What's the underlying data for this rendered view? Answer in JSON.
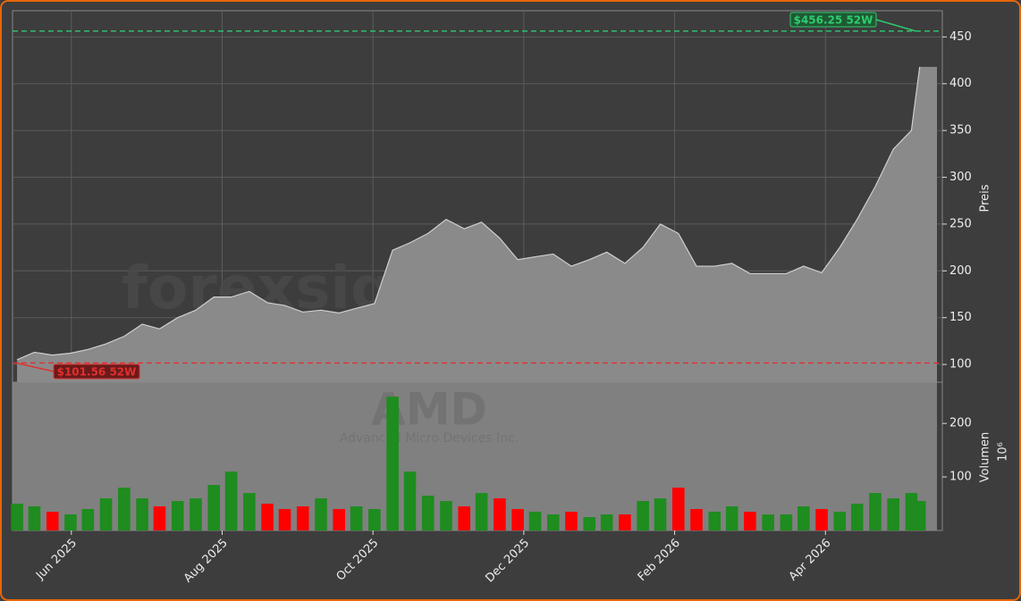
{
  "chart_data": [
    {
      "type": "area",
      "title": "forexsignale.trade",
      "ylabel": "Preis",
      "color": "#8a8a8a",
      "line_color": "#cfcfcf",
      "x": [
        4.28,
        4.51,
        4.75,
        4.99,
        5.22,
        5.46,
        5.7,
        5.94,
        6.17,
        6.41,
        6.65,
        6.89,
        7.12,
        7.36,
        7.6,
        7.83,
        8.07,
        8.31,
        8.55,
        8.78,
        9.02,
        9.26,
        9.49,
        9.73,
        9.97,
        10.21,
        10.44,
        10.68,
        10.92,
        11.15,
        11.39,
        11.63,
        11.87,
        12.1,
        12.34,
        12.58,
        12.81,
        13.05,
        13.29,
        13.53,
        13.76,
        14.0,
        14.24,
        14.48,
        14.71,
        14.95,
        15.19,
        15.42,
        15.66,
        15.9,
        16.14,
        16.25
      ],
      "values": [
        105,
        113,
        110,
        112,
        116,
        122,
        130,
        143,
        138,
        150,
        158,
        172,
        172,
        178,
        166,
        163,
        156,
        158,
        155,
        160,
        165,
        222,
        230,
        240,
        255,
        245,
        252,
        235,
        212,
        215,
        218,
        205,
        212,
        220,
        208,
        225,
        250,
        240,
        205,
        205,
        208,
        197,
        197,
        197,
        205,
        198,
        225,
        255,
        290,
        330,
        350,
        418
      ],
      "xlim": [
        4.22,
        16.55
      ],
      "ylim": [
        81,
        478
      ],
      "yticks": [
        100,
        150,
        200,
        250,
        300,
        350,
        400,
        450
      ],
      "grid": true,
      "annotations": [
        {
          "text": "$456.25 52W",
          "value": 456.25,
          "color": "#2ecc71"
        },
        {
          "text": "$101.56 52W",
          "value": 101.56,
          "color": "#e03030"
        }
      ]
    },
    {
      "type": "bar",
      "title": "AMD",
      "subtitle": "Advanced Micro Devices Inc.",
      "ylabel": "Volumen",
      "unit": "10⁶",
      "up_color": "#1e8c1e",
      "down_color": "#ff0000",
      "x": [
        4.28,
        4.51,
        4.75,
        4.99,
        5.22,
        5.46,
        5.7,
        5.94,
        6.17,
        6.41,
        6.65,
        6.89,
        7.12,
        7.36,
        7.6,
        7.83,
        8.07,
        8.31,
        8.55,
        8.78,
        9.02,
        9.26,
        9.49,
        9.73,
        9.97,
        10.21,
        10.44,
        10.68,
        10.92,
        11.15,
        11.39,
        11.63,
        11.87,
        12.1,
        12.34,
        12.58,
        12.81,
        13.05,
        13.29,
        13.53,
        13.76,
        14.0,
        14.24,
        14.48,
        14.71,
        14.95,
        15.19,
        15.42,
        15.66,
        15.9,
        16.14,
        16.25
      ],
      "values": [
        50,
        45,
        35,
        30,
        40,
        60,
        80,
        60,
        45,
        55,
        60,
        85,
        110,
        70,
        50,
        40,
        45,
        60,
        40,
        45,
        40,
        250,
        110,
        65,
        55,
        45,
        70,
        60,
        40,
        35,
        30,
        35,
        25,
        30,
        30,
        55,
        60,
        80,
        40,
        35,
        45,
        35,
        30,
        30,
        45,
        40,
        35,
        50,
        70,
        60,
        70,
        55
      ],
      "xlim": [
        4.22,
        16.55
      ],
      "ylim": [
        0,
        277
      ],
      "yticks": [
        100,
        200
      ],
      "xticks": [
        {
          "value": 5,
          "label": "Jun 2025"
        },
        {
          "value": 7,
          "label": "Aug 2025"
        },
        {
          "value": 9,
          "label": "Oct 2025"
        },
        {
          "value": 11,
          "label": "Dec 2025"
        },
        {
          "value": 13,
          "label": "Feb 2026"
        },
        {
          "value": 15,
          "label": "Apr 2026"
        }
      ]
    }
  ]
}
